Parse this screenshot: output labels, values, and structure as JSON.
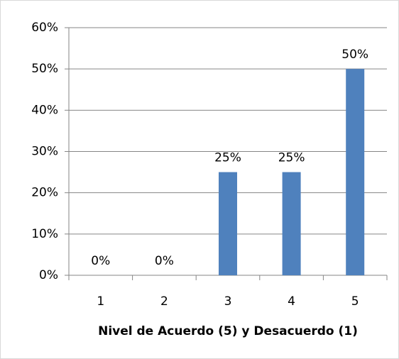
{
  "chart_data": {
    "type": "bar",
    "x_label": "Nivel de Acuerdo (5) y Desacuerdo (1)",
    "categories": [
      "1",
      "2",
      "3",
      "4",
      "5"
    ],
    "values": [
      0,
      0,
      25,
      25,
      50
    ],
    "value_labels": [
      "0%",
      "0%",
      "25%",
      "25%",
      "50%"
    ],
    "color": "#4f81bd",
    "ylim": [
      0,
      60
    ],
    "yticks": [
      {
        "value": 0,
        "label": "0%"
      },
      {
        "value": 10,
        "label": "10%"
      },
      {
        "value": 20,
        "label": "20%"
      },
      {
        "value": 30,
        "label": "30%"
      },
      {
        "value": 40,
        "label": "40%"
      },
      {
        "value": 50,
        "label": "50%"
      },
      {
        "value": 60,
        "label": "60%"
      }
    ],
    "grid": true
  }
}
